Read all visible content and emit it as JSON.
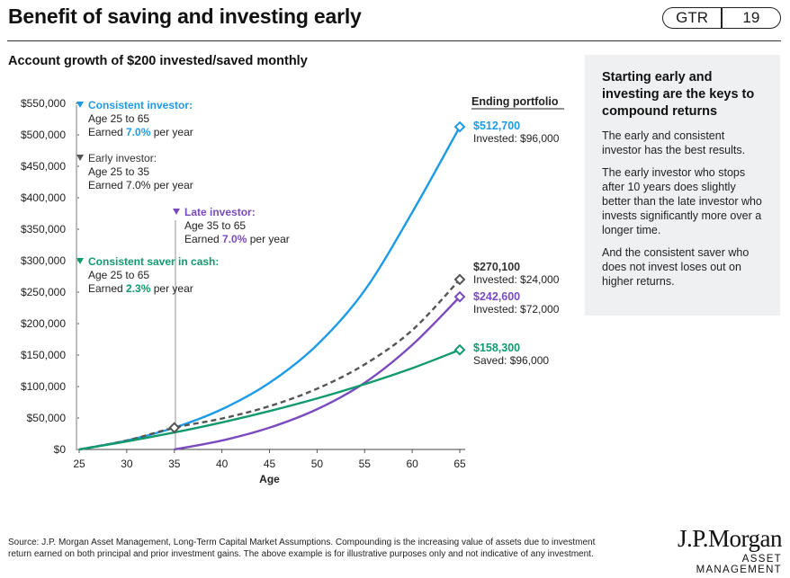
{
  "header": {
    "title": "Benefit of saving and investing early",
    "badge_left": "GTR",
    "badge_right": "19"
  },
  "subtitle": "Account growth of $200 invested/saved monthly",
  "sidebar": {
    "heading": "Starting early and investing are the keys to compound returns",
    "p1": "The early and consistent investor has the best results.",
    "p2": "The early investor who stops after 10 years does slightly better than the late investor who invests significantly more over a longer time.",
    "p3": "And the consistent saver who does not invest loses out on higher returns."
  },
  "chart_data": {
    "type": "line",
    "xlabel": "Age",
    "ylabel": "",
    "xlim": [
      25,
      65
    ],
    "ylim": [
      0,
      550000
    ],
    "x_ticks": [
      "25",
      "30",
      "35",
      "40",
      "45",
      "50",
      "55",
      "60",
      "65"
    ],
    "y_ticks": [
      "$0",
      "$50,000",
      "$100,000",
      "$150,000",
      "$200,000",
      "$250,000",
      "$300,000",
      "$350,000",
      "$400,000",
      "$450,000",
      "$500,000",
      "$550,000"
    ],
    "ending_header": "Ending portfolio",
    "colors": {
      "consistent_investor": "#1e9be6",
      "early_investor": "#555555",
      "late_investor": "#7a4bbf",
      "saver": "#119a6b"
    },
    "series": [
      {
        "name": "Consistent investor:",
        "key": "consistent_investor",
        "x": [
          25,
          30,
          35,
          40,
          45,
          50,
          55,
          60,
          65
        ],
        "values": [
          0,
          14200,
          34600,
          63900,
          105900,
          166100,
          252700,
          376800,
          512700
        ],
        "legend_lines": [
          "Age 25 to 65",
          "Earned 7.0% per year"
        ],
        "end_value": "$512,700",
        "end_note": "Invested: $96,000"
      },
      {
        "name": "Early investor:",
        "key": "early_investor",
        "x": [
          25,
          30,
          35,
          40,
          45,
          50,
          55,
          60,
          65
        ],
        "values": [
          0,
          14200,
          34600,
          49100,
          68800,
          96500,
          135100,
          189500,
          270100
        ],
        "legend_lines": [
          "Age 25 to 35",
          "Earned 7.0% per year"
        ],
        "end_value": "$270,100",
        "end_note": "Invested: $24,000"
      },
      {
        "name": "Late investor:",
        "key": "late_investor",
        "x": [
          35,
          40,
          45,
          50,
          55,
          60,
          65
        ],
        "values": [
          0,
          14200,
          34600,
          63900,
          105900,
          166100,
          242600
        ],
        "legend_lines": [
          "Age 35 to 65",
          "Earned 7.0% per year"
        ],
        "end_value": "$242,600",
        "end_note": "Invested: $72,000"
      },
      {
        "name": "Consistent saver in cash:",
        "key": "saver",
        "x": [
          25,
          30,
          35,
          40,
          45,
          50,
          55,
          60,
          65
        ],
        "values": [
          0,
          12700,
          27000,
          43000,
          61000,
          81100,
          103700,
          129100,
          158300
        ],
        "legend_lines": [
          "Age 25 to 65",
          "Earned 2.3% per year"
        ],
        "end_value": "$158,300",
        "end_note": "Saved: $96,000"
      }
    ]
  },
  "footnote": "Source: J.P. Morgan Asset Management, Long-Term Capital Market Assumptions. Compounding is the increasing value of assets due to investment return earned on both principal and prior investment gains. The above example is for illustrative purposes only and not indicative of any investment.",
  "brand": {
    "name": "J.P.Morgan",
    "sub": "ASSET MANAGEMENT"
  }
}
